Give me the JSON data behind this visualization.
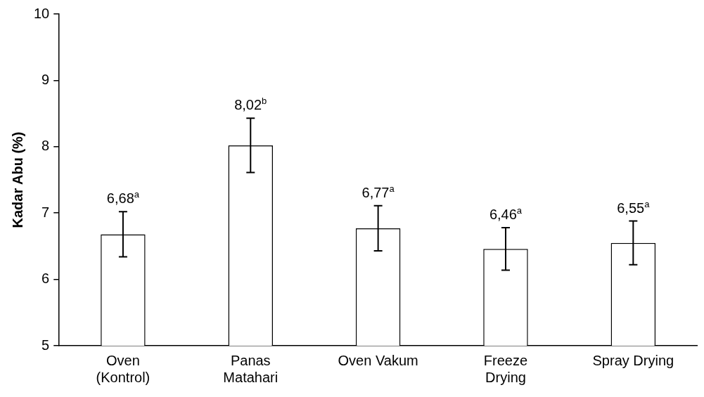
{
  "chart_data": {
    "type": "bar",
    "ylabel": "Kadar Abu (%)",
    "categories": [
      "Oven\n(Kontrol)",
      "Panas\nMatahari",
      "Oven Vakum",
      "Freeze\nDrying",
      "Spray Drying"
    ],
    "values": [
      6.68,
      8.02,
      6.77,
      6.46,
      6.55
    ],
    "errors": [
      0.34,
      0.41,
      0.34,
      0.32,
      0.33
    ],
    "value_labels": [
      "6,68$^{a}$",
      "8,02$^{b}$",
      "6,77$^{a}$",
      "6,46$^{a}$",
      "6,55$^{a}$"
    ],
    "color": "#ffffff",
    "ylim": [
      5,
      10
    ],
    "yticks": [
      5,
      6,
      7,
      8,
      9,
      10
    ],
    "grid": false,
    "legend": false
  }
}
